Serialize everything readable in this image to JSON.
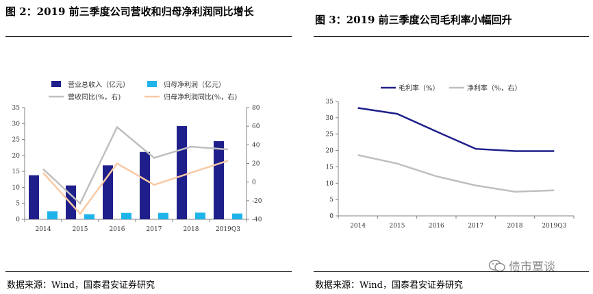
{
  "titles": {
    "left": "图 2：2019 前三季度公司营收和归母净利润同比增长",
    "right": "图 3：2019 前三季度公司毛利率小幅回升"
  },
  "sources": {
    "left": "数据来源：Wind，国泰君安证券研究",
    "right": "数据来源：Wind，国泰君安证券研究"
  },
  "watermark": {
    "text": "债市覃谈",
    "icon": "wechat-icon"
  },
  "chart_data": [
    {
      "type": "bar",
      "categories": [
        "2014",
        "2015",
        "2016",
        "2017",
        "2018",
        "2019Q3"
      ],
      "series": [
        {
          "name": "营业总收入（亿元）",
          "kind": "bar",
          "axis": "left",
          "color": "#1f1f8c",
          "values": [
            13.8,
            10.6,
            16.9,
            21.1,
            29.2,
            24.5
          ]
        },
        {
          "name": "归母净利润（亿元）",
          "kind": "bar",
          "axis": "left",
          "color": "#1eb4ea",
          "values": [
            2.5,
            1.6,
            2.0,
            2.0,
            2.1,
            1.8
          ]
        },
        {
          "name": "营收同比(%，右)",
          "kind": "line",
          "axis": "right",
          "color": "#bfbfbf",
          "values": [
            14,
            -23,
            59,
            26,
            38,
            35
          ]
        },
        {
          "name": "归母净利润同比(%，右)",
          "kind": "line",
          "axis": "right",
          "color": "#f8c9a4",
          "values": [
            10,
            -34,
            20,
            -3,
            10,
            23
          ]
        }
      ],
      "ylim_left": [
        0,
        35
      ],
      "yticks_left": [
        "0",
        "5",
        "10",
        "15",
        "20",
        "25",
        "30",
        "35"
      ],
      "ylim_right": [
        -40,
        80
      ],
      "yticks_right": [
        "-40",
        "-20",
        "0",
        "20",
        "40",
        "60",
        "80"
      ],
      "title": "",
      "xlabel": "",
      "ylabel": ""
    },
    {
      "type": "line",
      "categories": [
        "2014",
        "2015",
        "2016",
        "2017",
        "2018",
        "2019Q3"
      ],
      "series": [
        {
          "name": "毛利率（%）",
          "color": "#1f1f8c",
          "values": [
            33.0,
            31.2,
            25.8,
            20.5,
            19.8,
            19.8
          ]
        },
        {
          "name": "净利率（%，右）",
          "color": "#bfbfbf",
          "values": [
            18.6,
            16.0,
            12.1,
            9.3,
            7.4,
            7.8
          ]
        }
      ],
      "ylim": [
        0,
        35
      ],
      "yticks": [
        "0",
        "5",
        "10",
        "15",
        "20",
        "25",
        "30",
        "35"
      ],
      "title": "",
      "xlabel": "",
      "ylabel": ""
    }
  ]
}
